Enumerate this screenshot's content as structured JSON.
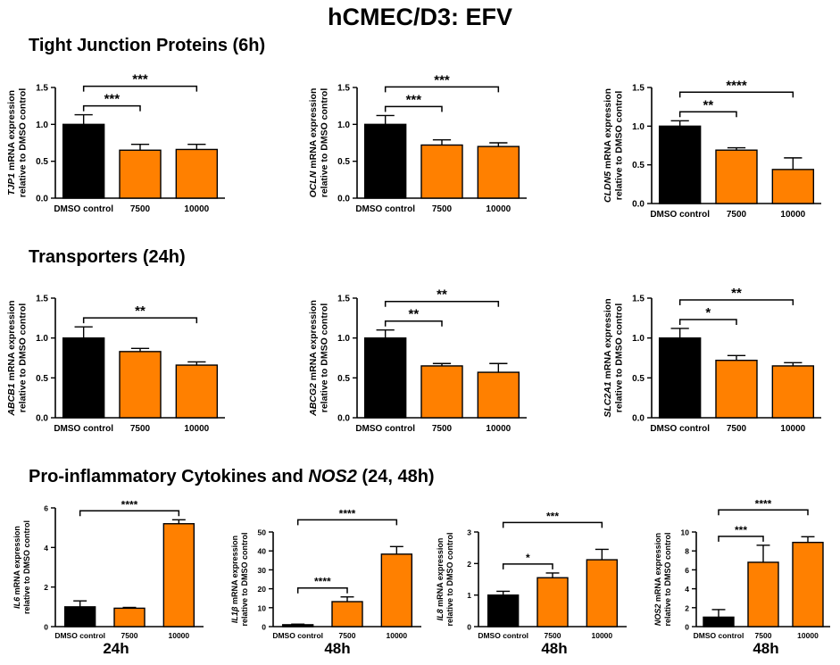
{
  "figure": {
    "title": "hCMEC/D3: EFV"
  },
  "sections": [
    {
      "title": "Tight Junction Proteins (6h)"
    },
    {
      "title": "Transporters (24h)"
    },
    {
      "title_pre": "Pro-inflammatory Cytokines and ",
      "title_gene": "NOS2",
      "title_post": " (24, 48h)"
    }
  ],
  "bottom_labels": [
    "24h",
    "48h",
    "48h",
    "48h"
  ],
  "colors": {
    "control": "#000000",
    "treatment": "#ff8000",
    "bar_border": "#000000"
  },
  "chart_data": [
    {
      "type": "bar",
      "gene": "TJP1",
      "ylabel_suffix": " mRNA expression",
      "ylabel2": "relative to DMSO control",
      "categories": [
        "DMSO control",
        "7500",
        "10000"
      ],
      "values": [
        1.0,
        0.65,
        0.66
      ],
      "errors": [
        0.13,
        0.08,
        0.07
      ],
      "ylim": [
        0,
        1.5
      ],
      "yticks": [
        "0.0",
        "0.5",
        "1.0",
        "1.5"
      ],
      "ytick_values": [
        0,
        0.5,
        1.0,
        1.5
      ],
      "comparisons": [
        {
          "from": 0,
          "to": 2,
          "label": "***",
          "level": 1
        },
        {
          "from": 0,
          "to": 1,
          "label": "***",
          "level": 0
        }
      ]
    },
    {
      "type": "bar",
      "gene": "OCLN",
      "ylabel_suffix": " mRNA expression",
      "ylabel2": "relative to DMSO control",
      "categories": [
        "DMSO control",
        "7500",
        "10000"
      ],
      "values": [
        1.0,
        0.72,
        0.7
      ],
      "errors": [
        0.12,
        0.07,
        0.05
      ],
      "ylim": [
        0,
        1.5
      ],
      "yticks": [
        "0.0",
        "0.5",
        "1.0",
        "1.5"
      ],
      "ytick_values": [
        0,
        0.5,
        1.0,
        1.5
      ],
      "comparisons": [
        {
          "from": 0,
          "to": 2,
          "label": "***",
          "level": 1
        },
        {
          "from": 0,
          "to": 1,
          "label": "***",
          "level": 0
        }
      ]
    },
    {
      "type": "bar",
      "gene": "CLDN5",
      "ylabel_suffix": " mRNA expression",
      "ylabel2": "relative to DMSO control",
      "categories": [
        "DMSO control",
        "7500",
        "10000"
      ],
      "values": [
        1.0,
        0.69,
        0.44
      ],
      "errors": [
        0.07,
        0.03,
        0.15
      ],
      "ylim": [
        0,
        1.5
      ],
      "yticks": [
        "0.0",
        "0.5",
        "1.0",
        "1.5"
      ],
      "ytick_values": [
        0,
        0.5,
        1.0,
        1.5
      ],
      "comparisons": [
        {
          "from": 0,
          "to": 2,
          "label": "****",
          "level": 1
        },
        {
          "from": 0,
          "to": 1,
          "label": "**",
          "level": 0
        }
      ]
    },
    {
      "type": "bar",
      "gene": "ABCB1",
      "ylabel_suffix": " mRNA expression",
      "ylabel2": "relative to DMSO control",
      "categories": [
        "DMSO control",
        "7500",
        "10000"
      ],
      "values": [
        1.0,
        0.83,
        0.66
      ],
      "errors": [
        0.14,
        0.04,
        0.04
      ],
      "ylim": [
        0,
        1.5
      ],
      "yticks": [
        "0.0",
        "0.5",
        "1.0",
        "1.5"
      ],
      "ytick_values": [
        0,
        0.5,
        1.0,
        1.5
      ],
      "comparisons": [
        {
          "from": 0,
          "to": 2,
          "label": "**",
          "level": 1
        }
      ]
    },
    {
      "type": "bar",
      "gene": "ABCG2",
      "ylabel_suffix": " mRNA expression",
      "ylabel2": "relative to DMSO control",
      "categories": [
        "DMSO control",
        "7500",
        "10000"
      ],
      "values": [
        1.0,
        0.65,
        0.57
      ],
      "errors": [
        0.1,
        0.03,
        0.11
      ],
      "ylim": [
        0,
        1.5
      ],
      "yticks": [
        "0.0",
        "0.5",
        "1.0",
        "1.5"
      ],
      "ytick_values": [
        0,
        0.5,
        1.0,
        1.5
      ],
      "comparisons": [
        {
          "from": 0,
          "to": 2,
          "label": "**",
          "level": 1
        },
        {
          "from": 0,
          "to": 1,
          "label": "**",
          "level": 0
        }
      ]
    },
    {
      "type": "bar",
      "gene": "SLC2A1",
      "ylabel_suffix": " mRNA expression",
      "ylabel2": "relative to DMSO control",
      "categories": [
        "DMSO control",
        "7500",
        "10000"
      ],
      "values": [
        1.0,
        0.72,
        0.65
      ],
      "errors": [
        0.12,
        0.06,
        0.04
      ],
      "ylim": [
        0,
        1.5
      ],
      "yticks": [
        "0.0",
        "0.5",
        "1.0",
        "1.5"
      ],
      "ytick_values": [
        0,
        0.5,
        1.0,
        1.5
      ],
      "comparisons": [
        {
          "from": 0,
          "to": 2,
          "label": "**",
          "level": 1
        },
        {
          "from": 0,
          "to": 1,
          "label": "*",
          "level": 0
        }
      ]
    },
    {
      "type": "bar",
      "gene": "IL6",
      "ylabel_suffix": " mRNA expression",
      "ylabel2": "relative to DMSO control",
      "categories": [
        "DMSO control",
        "7500",
        "10000"
      ],
      "values": [
        1.0,
        0.93,
        5.2
      ],
      "errors": [
        0.3,
        0.04,
        0.2
      ],
      "ylim": [
        0,
        6
      ],
      "yticks": [
        "0",
        "2",
        "4",
        "6"
      ],
      "ytick_values": [
        0,
        2,
        4,
        6
      ],
      "comparisons": [
        {
          "from": 0,
          "to": 2,
          "label": "****",
          "level": 1
        }
      ]
    },
    {
      "type": "bar",
      "gene": "IL1β",
      "ylabel_suffix": " mRNA expression",
      "ylabel2": "relative to DMSO control",
      "categories": [
        "DMSO control",
        "7500",
        "10000"
      ],
      "values": [
        1.0,
        13.2,
        38.3
      ],
      "errors": [
        0.3,
        2.5,
        4.0
      ],
      "ylim": [
        0,
        50
      ],
      "yticks": [
        "0",
        "10",
        "20",
        "30",
        "40",
        "50"
      ],
      "ytick_values": [
        0,
        10,
        20,
        30,
        40,
        50
      ],
      "comparisons": [
        {
          "from": 0,
          "to": 2,
          "label": "****",
          "level": 1
        },
        {
          "from": 0,
          "to": 1,
          "label": "****",
          "level": 0
        }
      ]
    },
    {
      "type": "bar",
      "gene": "IL8",
      "ylabel_suffix": " mRNA expression",
      "ylabel2": "relative to DMSO control",
      "categories": [
        "DMSO control",
        "7500",
        "10000"
      ],
      "values": [
        1.0,
        1.55,
        2.12
      ],
      "errors": [
        0.12,
        0.15,
        0.33
      ],
      "ylim": [
        0,
        3
      ],
      "yticks": [
        "0",
        "1",
        "2",
        "3"
      ],
      "ytick_values": [
        0,
        1,
        2,
        3
      ],
      "comparisons": [
        {
          "from": 0,
          "to": 2,
          "label": "***",
          "level": 1
        },
        {
          "from": 0,
          "to": 1,
          "label": "*",
          "level": 0
        }
      ]
    },
    {
      "type": "bar",
      "gene": "NOS2",
      "ylabel_suffix": " mRNA expression",
      "ylabel2": "relative to DMSO control",
      "categories": [
        "DMSO control",
        "7500",
        "10000"
      ],
      "values": [
        1.0,
        6.8,
        8.9
      ],
      "errors": [
        0.8,
        1.8,
        0.6
      ],
      "ylim": [
        0,
        10
      ],
      "yticks": [
        "0",
        "2",
        "4",
        "6",
        "8",
        "10"
      ],
      "ytick_values": [
        0,
        2,
        4,
        6,
        8,
        10
      ],
      "comparisons": [
        {
          "from": 0,
          "to": 2,
          "label": "****",
          "level": 1
        },
        {
          "from": 0,
          "to": 1,
          "label": "***",
          "level": 0
        }
      ]
    }
  ]
}
